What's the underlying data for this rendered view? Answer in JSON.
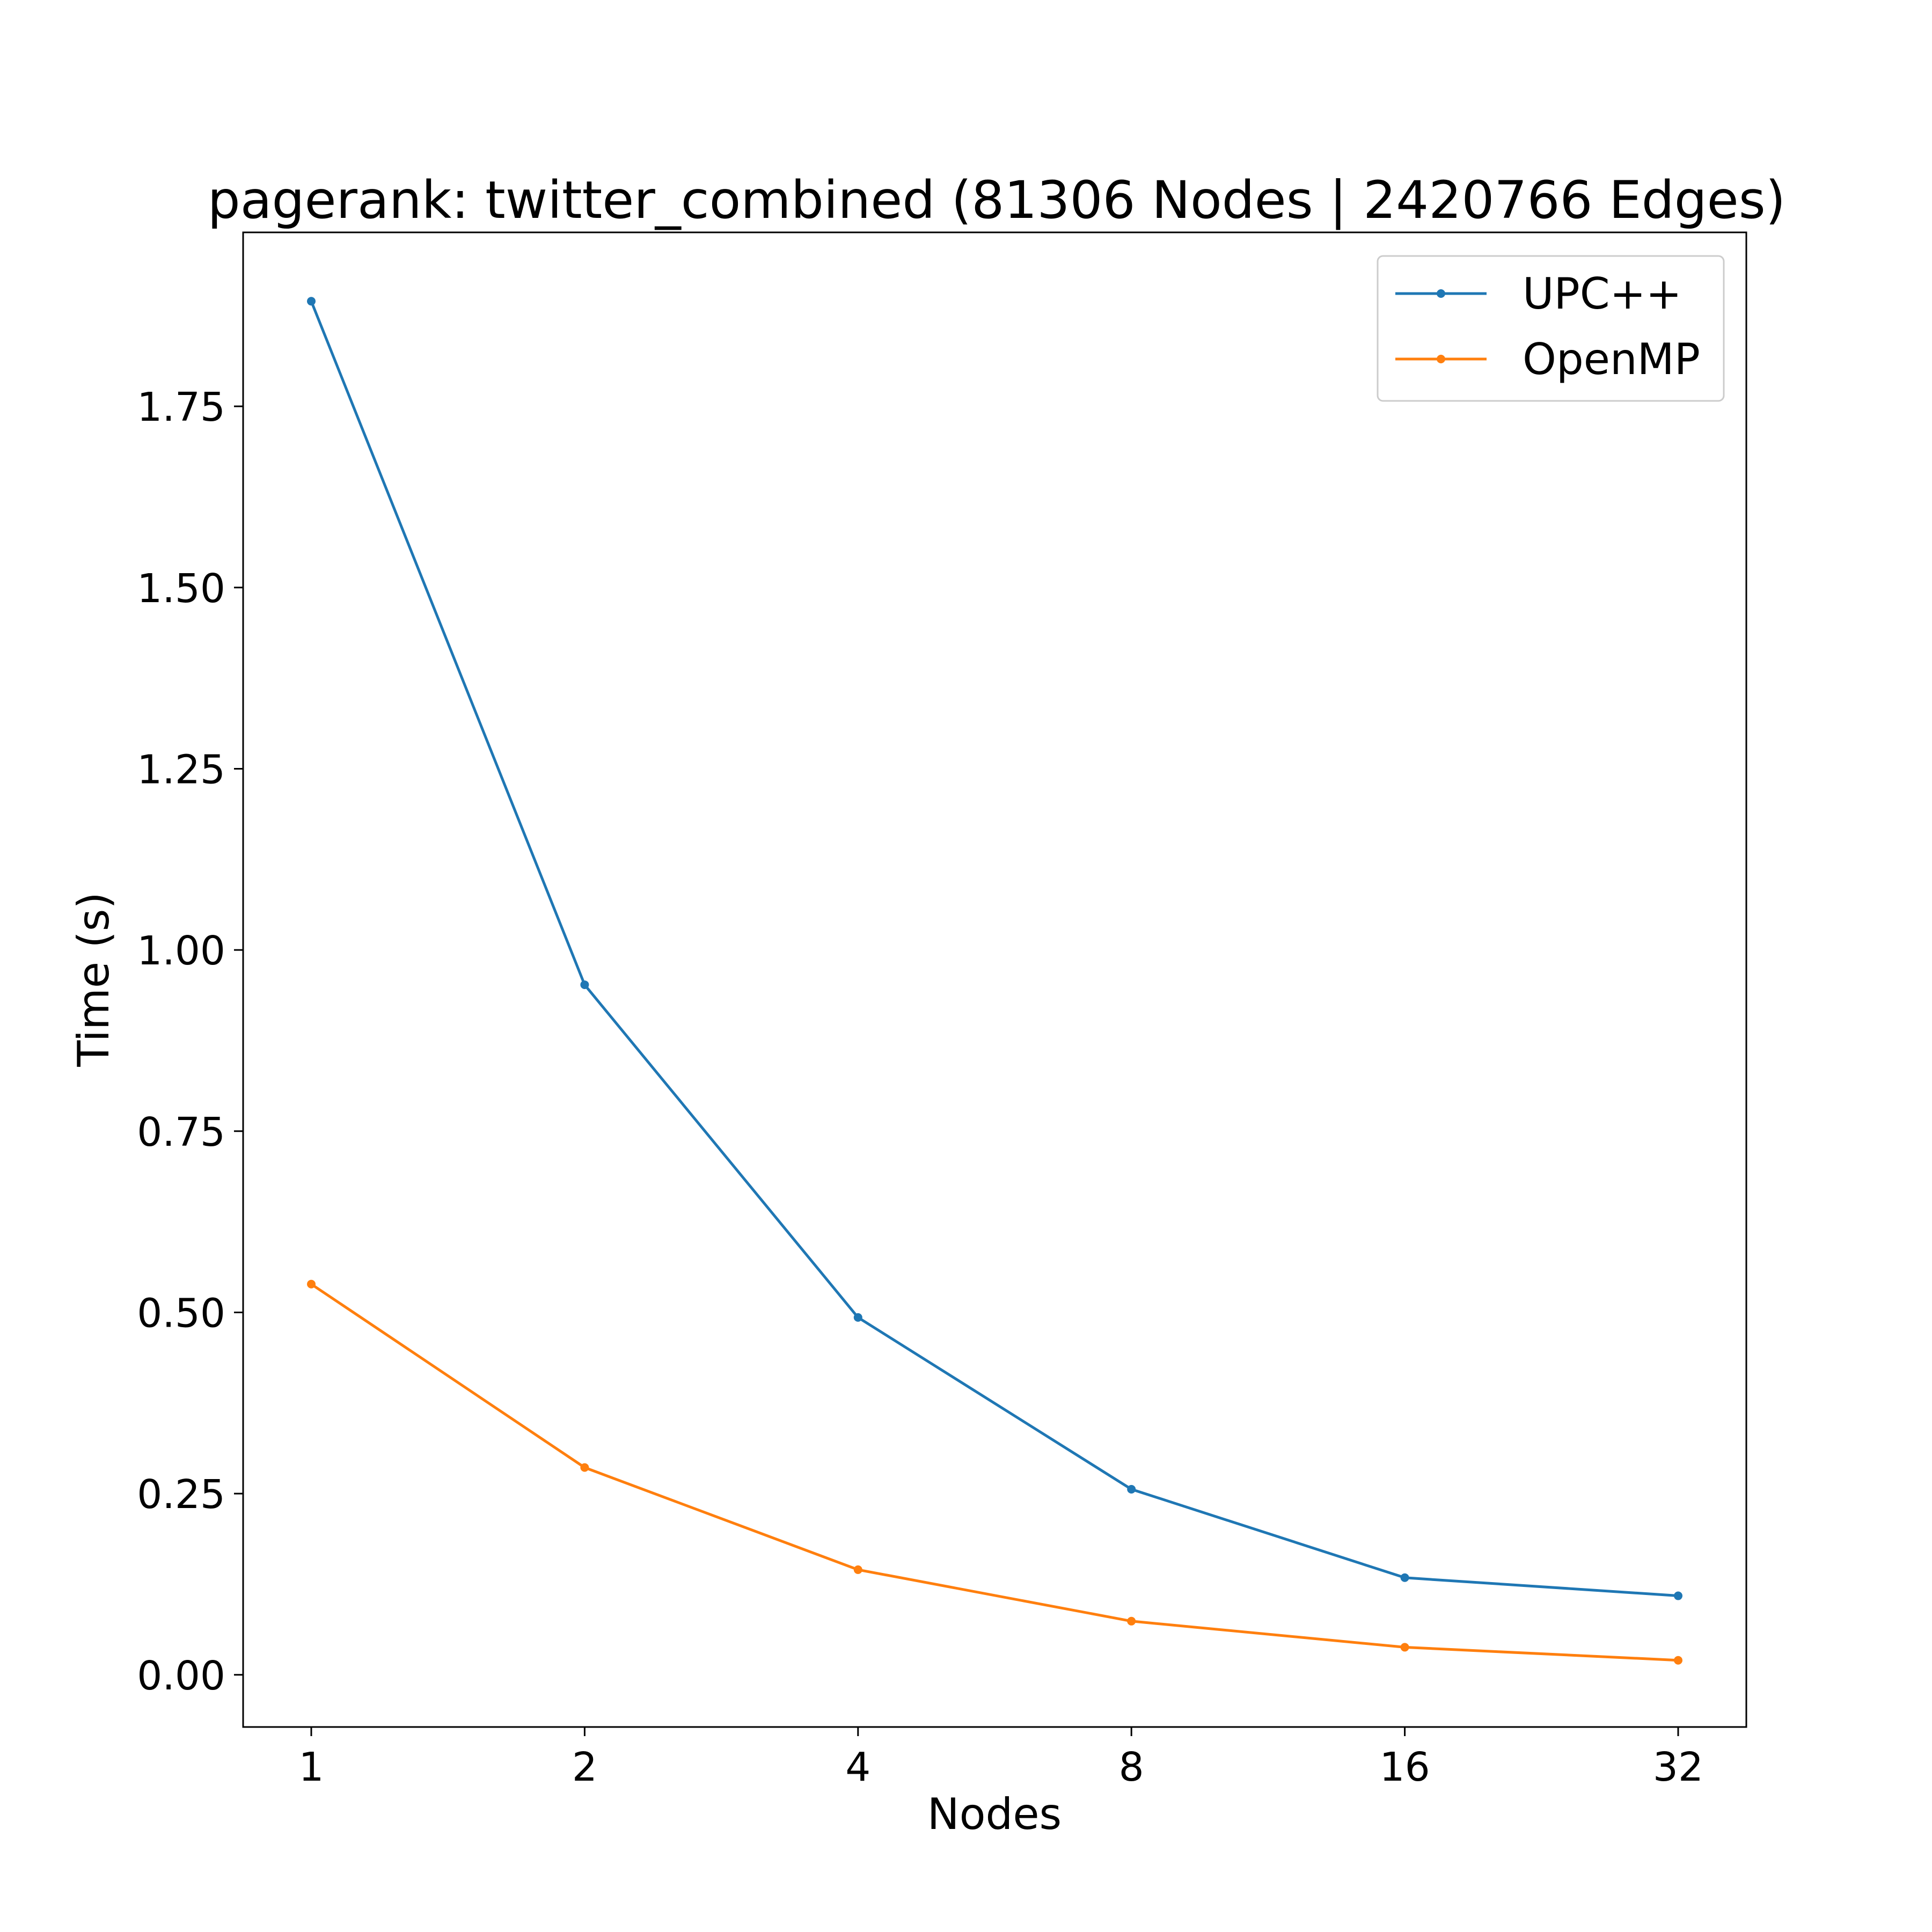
{
  "chart_data": {
    "type": "line",
    "title": "pagerank: twitter_combined (81306 Nodes | 2420766 Edges)",
    "xlabel": "Nodes",
    "ylabel": "Time (s)",
    "x": [
      "1",
      "2",
      "4",
      "8",
      "16",
      "32"
    ],
    "xscale": "log2",
    "ylim": [
      -0.072,
      1.99
    ],
    "yticks": [
      "0.00",
      "0.25",
      "0.50",
      "0.75",
      "1.00",
      "1.25",
      "1.50",
      "1.75"
    ],
    "grid": false,
    "legend_position": "top-right",
    "series": [
      {
        "name": "UPC++",
        "color": "#1f77b4",
        "values": [
          1.895,
          0.952,
          0.493,
          0.256,
          0.134,
          0.109
        ]
      },
      {
        "name": "OpenMP",
        "color": "#ff7f0e",
        "values": [
          0.539,
          0.286,
          0.145,
          0.074,
          0.038,
          0.02
        ]
      }
    ]
  }
}
